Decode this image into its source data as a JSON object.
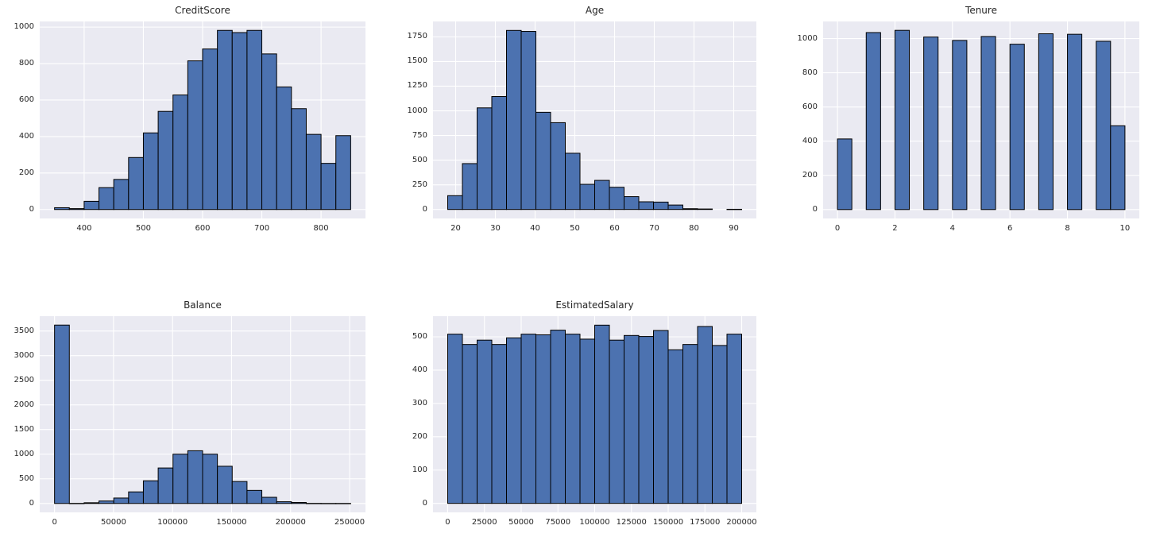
{
  "figure": {
    "background_color": "#ffffff",
    "panel_background_color": "#eaeaf2",
    "grid_color": "#ffffff",
    "bar_fill_color": "#4c72b0",
    "bar_edge_color": "#000000",
    "text_color": "#262626"
  },
  "chart_data": [
    {
      "type": "bar",
      "subtype": "histogram",
      "title": "CreditScore",
      "bin_start": 350,
      "bin_width": 25,
      "values": [
        10,
        5,
        45,
        120,
        165,
        285,
        420,
        538,
        628,
        815,
        880,
        982,
        970,
        982,
        853,
        672,
        553,
        412,
        253,
        405
      ],
      "xticks": [
        400,
        500,
        600,
        700,
        800
      ],
      "yticks": [
        0,
        200,
        400,
        600,
        800,
        1000
      ],
      "xlim": [
        325,
        875
      ],
      "ylim": [
        -49,
        1031
      ],
      "grid": true,
      "legend": "none"
    },
    {
      "type": "bar",
      "subtype": "histogram",
      "title": "Age",
      "bin_start": 18,
      "bin_width": 3.7,
      "values": [
        140,
        465,
        1030,
        1145,
        1815,
        1805,
        985,
        880,
        570,
        255,
        295,
        225,
        130,
        78,
        75,
        45,
        8,
        5,
        0,
        2
      ],
      "xticks": [
        20,
        30,
        40,
        50,
        60,
        70,
        80,
        90
      ],
      "yticks": [
        0,
        250,
        500,
        750,
        1000,
        1250,
        1500,
        1750
      ],
      "xlim": [
        14.3,
        95.7
      ],
      "ylim": [
        -91,
        1906
      ],
      "grid": true,
      "legend": "none"
    },
    {
      "type": "bar",
      "subtype": "histogram",
      "title": "Tenure",
      "bin_start": 0,
      "bin_width": 0.5,
      "values": [
        413,
        0,
        1035,
        0,
        1048,
        0,
        1009,
        0,
        989,
        0,
        1012,
        0,
        967,
        0,
        1028,
        0,
        1025,
        0,
        984,
        490
      ],
      "xticks": [
        0,
        2,
        4,
        6,
        8,
        10
      ],
      "yticks": [
        0,
        200,
        400,
        600,
        800,
        1000
      ],
      "xlim": [
        -0.5,
        10.5
      ],
      "ylim": [
        -52,
        1100
      ],
      "grid": true,
      "legend": "none"
    },
    {
      "type": "bar",
      "subtype": "histogram",
      "title": "Balance",
      "bin_start": 0,
      "bin_width": 12544.9,
      "values": [
        3620,
        2,
        15,
        50,
        110,
        235,
        460,
        720,
        1000,
        1070,
        1000,
        755,
        445,
        265,
        125,
        35,
        20,
        2,
        1,
        1
      ],
      "xticks": [
        0,
        50000,
        100000,
        150000,
        200000,
        250000
      ],
      "yticks": [
        0,
        500,
        1000,
        1500,
        2000,
        2500,
        3000,
        3500
      ],
      "xlim": [
        -12545,
        263443
      ],
      "ylim": [
        -181,
        3801
      ],
      "grid": true,
      "legend": "none"
    },
    {
      "type": "bar",
      "subtype": "histogram",
      "title": "EstimatedSalary",
      "bin_start": 11.58,
      "bin_width": 9999.05,
      "values": [
        508,
        477,
        490,
        477,
        497,
        508,
        506,
        520,
        508,
        493,
        535,
        490,
        504,
        501,
        519,
        461,
        477,
        531,
        474,
        508
      ],
      "xticks": [
        0,
        25000,
        50000,
        75000,
        100000,
        125000,
        150000,
        175000,
        200000
      ],
      "yticks": [
        0,
        100,
        200,
        300,
        400,
        500
      ],
      "xlim": [
        -9988,
        209992
      ],
      "ylim": [
        -27,
        562
      ],
      "grid": true,
      "legend": "none"
    }
  ]
}
